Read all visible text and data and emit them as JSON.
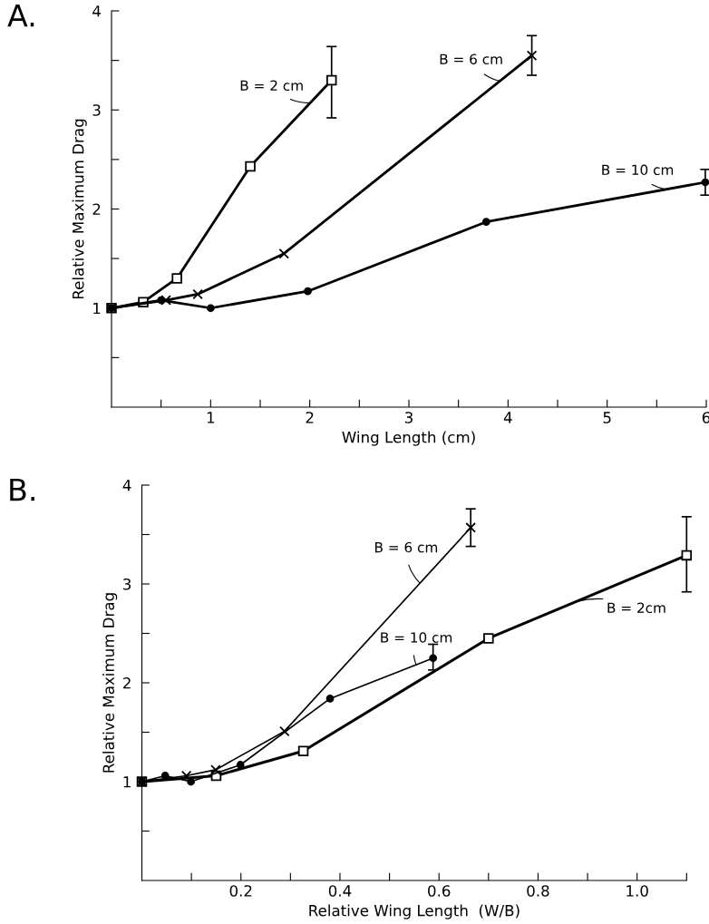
{
  "chart_data": [
    {
      "type": "line",
      "xlabel": "Wing Length (cm)",
      "ylabel": "Relative Maximum Drag",
      "xlim": [
        0,
        6
      ],
      "ylim": [
        0,
        4
      ],
      "grid": false,
      "xticks": [
        {
          "value": 0.5,
          "label": null
        },
        1,
        {
          "value": 1.5,
          "label": null
        },
        2,
        {
          "value": 2.5,
          "label": null
        },
        3,
        {
          "value": 3.5,
          "label": null
        },
        4,
        {
          "value": 4.5,
          "label": null
        },
        5,
        {
          "value": 5.5,
          "label": null
        },
        6
      ],
      "yticks": [
        {
          "value": 0.5,
          "label": null
        },
        1,
        {
          "value": 1.5,
          "label": null
        },
        2,
        {
          "value": 2.5,
          "label": null
        },
        3,
        {
          "value": 3.5,
          "label": null
        },
        4
      ],
      "line_style": "solid",
      "series": [
        {
          "color": "#000000",
          "marker": "square",
          "x": [
            0,
            0.32,
            0.66,
            1.4,
            2.22
          ],
          "values": [
            1,
            1.06,
            1.3,
            2.43,
            3.3
          ],
          "errors": [
            null,
            null,
            null,
            null,
            [
              2.92,
              3.64
            ]
          ]
        },
        {
          "color": "#000000",
          "marker": "cross",
          "x": [
            0,
            0.55,
            0.87,
            1.74,
            4.24
          ],
          "values": [
            1,
            1.08,
            1.14,
            1.55,
            3.55
          ],
          "errors": [
            null,
            null,
            null,
            null,
            [
              3.35,
              3.75
            ]
          ]
        },
        {
          "color": "#000000",
          "marker": "circle",
          "x": [
            0,
            0.5,
            1.0,
            1.98,
            3.78,
            5.99
          ],
          "values": [
            1,
            1.08,
            1.0,
            1.17,
            1.87,
            2.27
          ],
          "errors": [
            null,
            null,
            null,
            null,
            null,
            [
              2.14,
              2.4
            ]
          ]
        }
      ],
      "annotations": [
        "A.",
        {
          "text": "B = 2 cm",
          "x": 2.0,
          "y": 3.07
        },
        {
          "text": "B = 6 cm",
          "x": 3.92,
          "y": 3.29
        },
        {
          "text": "B = 10 cm",
          "x": 5.58,
          "y": 2.2
        }
      ]
    },
    {
      "type": "line",
      "xlabel": "Relative Wing Length  (W/B)",
      "ylabel": "Relative Maximum Drag",
      "xlim": [
        0,
        1.1
      ],
      "ylim": [
        0,
        4
      ],
      "xticks": [
        {
          "value": 0.1,
          "label": null
        },
        {
          "value": 0.2,
          "label": "0.2"
        },
        {
          "value": 0.3,
          "label": null
        },
        {
          "value": 0.4,
          "label": "0.4"
        },
        {
          "value": 0.5,
          "label": null
        },
        {
          "value": 0.6,
          "label": "0.6"
        },
        {
          "value": 0.7,
          "label": null
        },
        {
          "value": 0.8,
          "label": "0.8"
        },
        {
          "value": 0.9,
          "label": null
        },
        {
          "value": 1.0,
          "label": "1.0"
        },
        {
          "value": 1.1,
          "label": null
        }
      ],
      "yticks": [
        {
          "value": 0.5,
          "label": null
        },
        1,
        {
          "value": 1.5,
          "label": null
        },
        2,
        {
          "value": 2.5,
          "label": null
        },
        3,
        {
          "value": 3.5,
          "label": null
        },
        4
      ],
      "grid": false,
      "line_style": "solid",
      "series": [
        {
          "color": "#000000",
          "marker": "square",
          "x": [
            0,
            0.15,
            0.326,
            0.7,
            1.1
          ],
          "values": [
            1,
            1.06,
            1.31,
            2.45,
            3.29
          ],
          "errors": [
            null,
            null,
            null,
            null,
            [
              2.92,
              3.68
            ]
          ]
        },
        {
          "color": "#000000",
          "marker": "cross",
          "x": [
            0,
            0.09,
            0.149,
            0.288,
            0.664
          ],
          "values": [
            1,
            1.06,
            1.12,
            1.51,
            3.57
          ],
          "errors": [
            null,
            null,
            null,
            null,
            [
              3.38,
              3.76
            ]
          ]
        },
        {
          "color": "#000000",
          "marker": "circle",
          "x": [
            0,
            0.047,
            0.099,
            0.199,
            0.38,
            0.588
          ],
          "values": [
            1,
            1.06,
            1.0,
            1.17,
            1.84,
            2.25
          ],
          "errors": [
            null,
            null,
            null,
            null,
            null,
            [
              2.13,
              2.39
            ]
          ]
        }
      ],
      "annotations": [
        "B.",
        {
          "text": "B = 6 cm",
          "x": 0.561,
          "y": 3.01
        },
        {
          "text": "B = 10 cm",
          "x": 0.554,
          "y": 2.18
        },
        {
          "text": "B = 2cm",
          "x": 0.876,
          "y": 2.82
        }
      ]
    }
  ]
}
